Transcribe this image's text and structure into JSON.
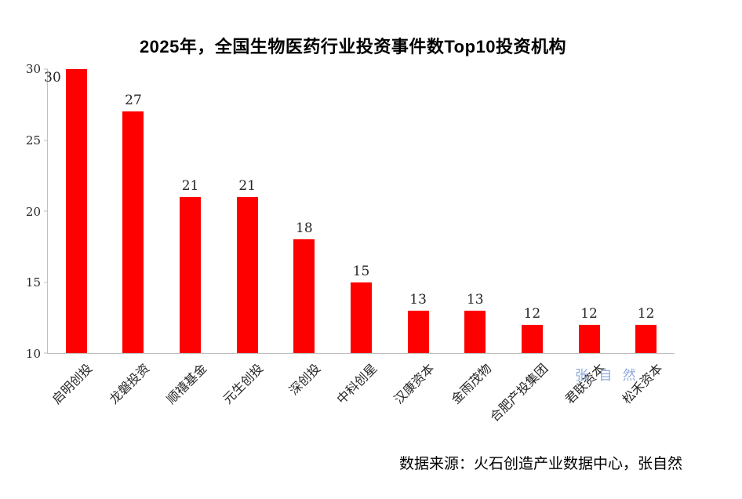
{
  "chart_data": {
    "type": "bar",
    "title": "2025年，全国生物医药行业投资事件数Top10投资机构",
    "categories": [
      "启明创投",
      "龙磐投资",
      "顺禧基金",
      "元生创投",
      "深创投",
      "中科创星",
      "汉康资本",
      "金雨茂物",
      "合肥产投集团",
      "君联资本",
      "松禾资本"
    ],
    "values": [
      30,
      27,
      21,
      21,
      18,
      15,
      13,
      13,
      12,
      12,
      12
    ],
    "xlabel": "",
    "ylabel": "",
    "ylim": [
      10,
      30
    ],
    "y_ticks": [
      10,
      15,
      20,
      25,
      30
    ],
    "bar_color": "#ff0000",
    "grid": false,
    "legend": false
  },
  "watermark": {
    "text": "张 自 然",
    "color": "#8faadc"
  },
  "footer": {
    "source": "数据来源：火石创造产业数据中心，张自然"
  }
}
